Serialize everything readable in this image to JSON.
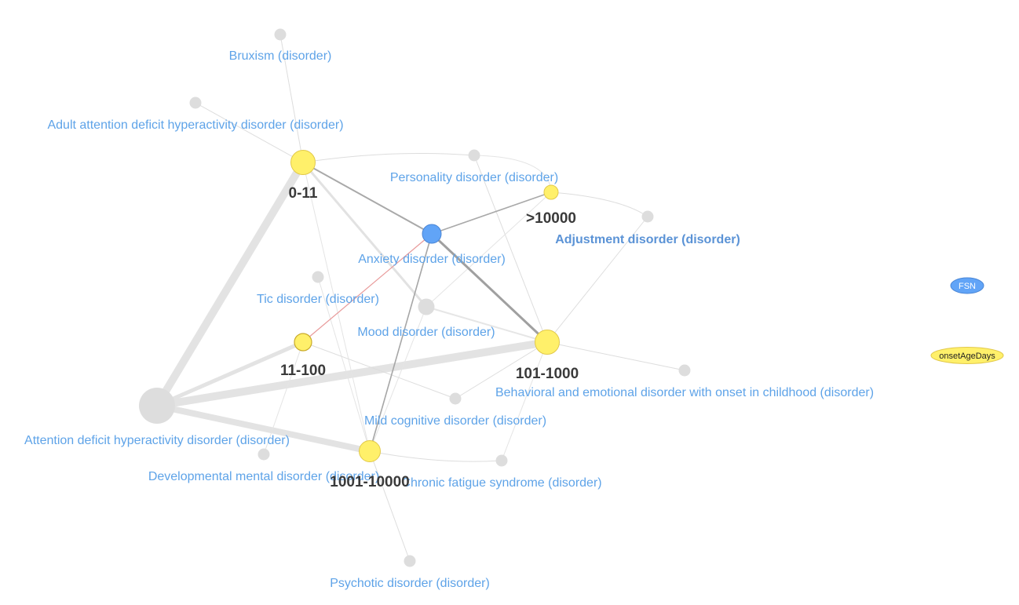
{
  "nodes": {
    "bruxism": {
      "label": "Bruxism (disorder)"
    },
    "adult_adhd": {
      "label": "Adult attention deficit hyperactivity disorder (disorder)"
    },
    "personality": {
      "label": "Personality disorder (disorder)"
    },
    "adjustment": {
      "label": "Adjustment disorder (disorder)"
    },
    "anxiety": {
      "label": "Anxiety disorder (disorder)"
    },
    "tic": {
      "label": "Tic disorder (disorder)"
    },
    "mood": {
      "label": "Mood disorder (disorder)"
    },
    "behavioral": {
      "label": "Behavioral and emotional disorder with onset in childhood (disorder)"
    },
    "mild_cognitive": {
      "label": "Mild cognitive disorder (disorder)"
    },
    "adhd": {
      "label": "Attention deficit hyperactivity disorder (disorder)"
    },
    "developmental": {
      "label": "Developmental mental disorder (disorder)"
    },
    "chronic_fatigue": {
      "label": "Chronic fatigue syndrome (disorder)"
    },
    "psychotic": {
      "label": "Psychotic disorder (disorder)"
    },
    "age_0_11": {
      "label": "0-11"
    },
    "age_gt_10000": {
      "label": ">10000"
    },
    "age_11_100": {
      "label": "11-100"
    },
    "age_101_1000": {
      "label": "101-1000"
    },
    "age_1001_10000": {
      "label": "1001-10000"
    }
  },
  "legend": {
    "fsn": "FSN",
    "onset": "onsetAgeDays"
  },
  "colors": {
    "age_node": "#fff06a",
    "focus_node": "#61a4f7",
    "grey_node": "#dddddd",
    "disorder_label": "#5ea3e8",
    "age_label": "#3a3a3a"
  }
}
